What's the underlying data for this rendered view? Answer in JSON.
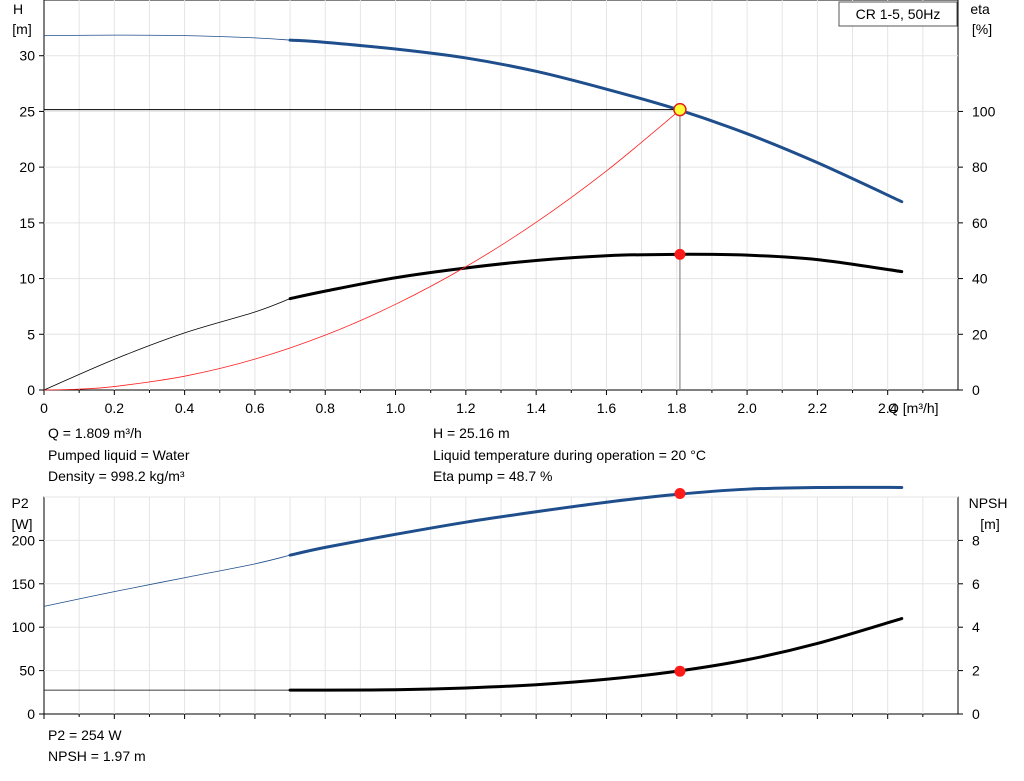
{
  "chart_data": [
    {
      "type": "line",
      "title": "CR 1-5, 50Hz",
      "xlabel": "Q [m³/h]",
      "ylabel": "H\n[m]",
      "ylabel_right": "eta\n[%]",
      "xlim": [
        0,
        2.6
      ],
      "ylim": [
        0,
        35
      ],
      "ylim_right": [
        0,
        140
      ],
      "grid": true,
      "x_ticks": [
        "0",
        "0.2",
        "0.4",
        "0.6",
        "0.8",
        "1.0",
        "1.2",
        "1.4",
        "1.6",
        "1.8",
        "2.0",
        "2.2",
        "2.4"
      ],
      "y_ticks": [
        "0",
        "5",
        "10",
        "15",
        "20",
        "25",
        "30"
      ],
      "y_ticks_right": [
        "0",
        "20",
        "40",
        "60",
        "80",
        "100"
      ],
      "series": [
        {
          "name": "H",
          "axis": "left",
          "color": "#1f4e8c",
          "x": [
            0,
            0.2,
            0.4,
            0.6,
            0.7,
            0.8,
            1.0,
            1.2,
            1.4,
            1.6,
            1.8,
            2.0,
            2.2,
            2.44
          ],
          "y": [
            31.8,
            31.85,
            31.8,
            31.6,
            31.4,
            31.2,
            30.6,
            29.8,
            28.6,
            27.0,
            25.2,
            23.0,
            20.4,
            16.9
          ],
          "thin_until_x": 0.7
        },
        {
          "name": "eta",
          "axis": "right",
          "color": "#000000",
          "x": [
            0,
            0.2,
            0.4,
            0.6,
            0.7,
            0.8,
            1.0,
            1.2,
            1.4,
            1.6,
            1.8,
            2.0,
            2.2,
            2.44
          ],
          "y": [
            0,
            11,
            20.5,
            28,
            32.8,
            35.5,
            40.3,
            43.8,
            46.5,
            48.2,
            48.7,
            48.4,
            46.8,
            42.5
          ],
          "thin_until_x": 0.7
        },
        {
          "name": "duty-line",
          "axis": "left",
          "color": "#ff2020",
          "x": [
            0,
            0.1,
            0.2,
            0.4,
            0.6,
            0.8,
            1.0,
            1.2,
            1.4,
            1.6,
            1.8,
            1.809
          ],
          "y": [
            0,
            0.08,
            0.31,
            1.24,
            2.77,
            4.92,
            7.69,
            11.06,
            15.05,
            19.66,
            24.89,
            25.16
          ]
        }
      ],
      "operating_point": {
        "x": 1.809,
        "H": 25.16,
        "eta": 48.7
      },
      "annotations": [
        "Q = 1.809 m³/h",
        "Pumped liquid = Water",
        "Density = 998.2 kg/m³",
        "H = 25.16 m",
        "Liquid temperature during operation = 20 °C",
        "Eta pump = 48.7 %"
      ]
    },
    {
      "type": "line",
      "ylabel": "P2\n[W]",
      "ylabel_right": "NPSH\n[m]",
      "xlim": [
        0,
        2.6
      ],
      "ylim": [
        0,
        250
      ],
      "ylim_right": [
        0,
        10
      ],
      "grid": true,
      "y_ticks": [
        "0",
        "50",
        "100",
        "150",
        "200"
      ],
      "y_ticks_right": [
        "0",
        "2",
        "4",
        "6",
        "8"
      ],
      "series": [
        {
          "name": "P2",
          "axis": "left",
          "color": "#1f4e8c",
          "x": [
            0,
            0.2,
            0.4,
            0.6,
            0.7,
            0.8,
            1.0,
            1.2,
            1.4,
            1.6,
            1.8,
            2.0,
            2.2,
            2.44
          ],
          "y": [
            124,
            141,
            157,
            173,
            183,
            192,
            207,
            221,
            233,
            244,
            253,
            259,
            261,
            261
          ],
          "thin_until_x": 0.7
        },
        {
          "name": "NPSH",
          "axis": "right",
          "color": "#000000",
          "x": [
            0,
            0.2,
            0.4,
            0.6,
            0.7,
            0.8,
            1.0,
            1.2,
            1.4,
            1.6,
            1.8,
            2.0,
            2.2,
            2.44
          ],
          "y": [
            1.1,
            1.1,
            1.1,
            1.1,
            1.1,
            1.1,
            1.12,
            1.2,
            1.35,
            1.6,
            1.97,
            2.5,
            3.25,
            4.4
          ],
          "thin_until_x": 0.7
        }
      ],
      "operating_point": {
        "x": 1.809,
        "P2": 254,
        "NPSH": 1.97
      },
      "annotations": [
        "P2 = 254 W",
        "NPSH = 1.97 m"
      ]
    }
  ]
}
